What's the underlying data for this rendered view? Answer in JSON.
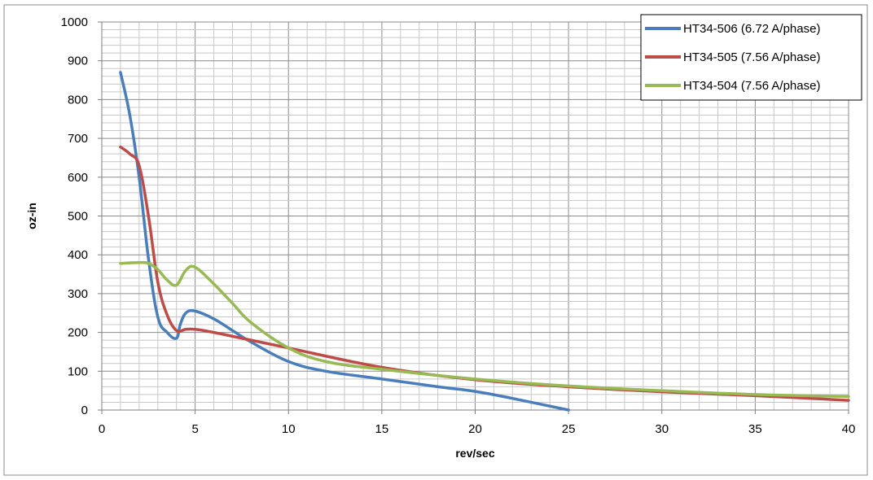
{
  "chart_data": {
    "type": "line",
    "title": "",
    "xlabel": "rev/sec",
    "ylabel": "oz-in",
    "xlim": [
      0,
      40
    ],
    "ylim": [
      0,
      1000
    ],
    "x_ticks": [
      0,
      5,
      10,
      15,
      20,
      25,
      30,
      35,
      40
    ],
    "y_ticks": [
      0,
      100,
      200,
      300,
      400,
      500,
      600,
      700,
      800,
      900,
      1000
    ],
    "x_minor_step": 1,
    "y_minor_step": 20,
    "grid": true,
    "legend_position": "top-right",
    "series": [
      {
        "name": "HT34-506 (6.72 A/phase)",
        "color": "#4a7ebb",
        "x": [
          1,
          1.5,
          2,
          2.5,
          3,
          3.5,
          4,
          4.2,
          4.5,
          5,
          6,
          7,
          8,
          10,
          12,
          15,
          18,
          20,
          22,
          25
        ],
        "y": [
          870,
          760,
          600,
          390,
          240,
          200,
          185,
          220,
          250,
          255,
          235,
          205,
          175,
          125,
          100,
          80,
          60,
          48,
          30,
          0
        ]
      },
      {
        "name": "HT34-505 (7.56 A/phase)",
        "color": "#be4b48",
        "x": [
          1,
          1.5,
          2,
          2.5,
          3,
          3.5,
          4,
          4.5,
          5,
          6,
          8,
          10,
          15,
          20,
          25,
          30,
          35,
          40
        ],
        "y": [
          678,
          660,
          630,
          500,
          330,
          245,
          205,
          208,
          208,
          200,
          180,
          160,
          110,
          78,
          60,
          47,
          37,
          25
        ]
      },
      {
        "name": "HT34-504 (7.56 A/phase)",
        "color": "#98b954",
        "x": [
          1,
          2,
          2.5,
          3,
          3.5,
          4,
          4.5,
          5,
          6,
          7,
          8,
          10,
          12,
          15,
          20,
          25,
          30,
          35,
          40
        ],
        "y": [
          378,
          380,
          378,
          362,
          335,
          322,
          360,
          368,
          325,
          275,
          225,
          160,
          125,
          105,
          80,
          62,
          50,
          40,
          35
        ]
      }
    ]
  }
}
